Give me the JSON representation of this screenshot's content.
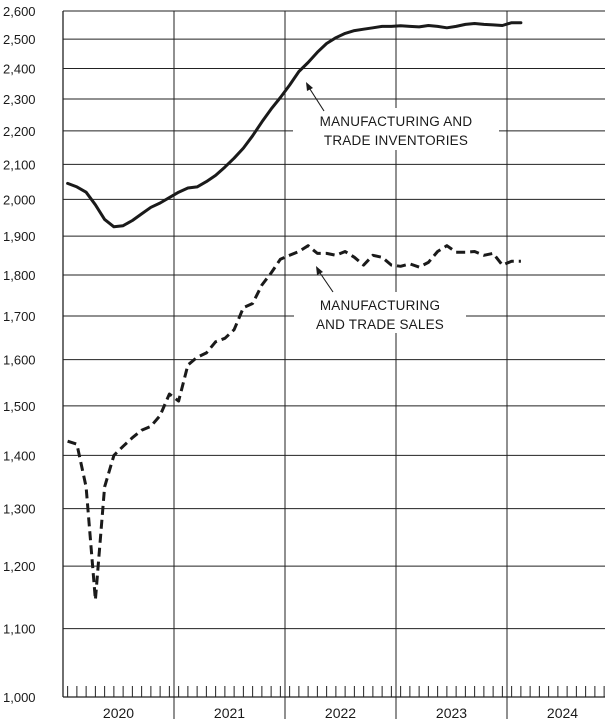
{
  "chart_data": {
    "type": "line",
    "y_scale": "log",
    "ylim": [
      1000,
      2600
    ],
    "y_ticks": [
      1000,
      1100,
      1200,
      1300,
      1400,
      1500,
      1600,
      1700,
      1800,
      1900,
      2000,
      2100,
      2200,
      2300,
      2400,
      2500,
      2600
    ],
    "y_tick_labels": [
      "1,000",
      "1,100",
      "1,200",
      "1,300",
      "1,400",
      "1,500",
      "1,600",
      "1,700",
      "1,800",
      "1,900",
      "2,000",
      "2,100",
      "2,200",
      "2,300",
      "2,400",
      "2,500",
      "2,600"
    ],
    "x_range": [
      "2020-01",
      "2024-12"
    ],
    "x_year_labels": [
      "2020",
      "2021",
      "2022",
      "2023",
      "2024"
    ],
    "grid": true,
    "series": [
      {
        "name": "MANUFACTURING AND TRADE INVENTORIES",
        "style": "solid",
        "x": [
          "2020-01",
          "2020-02",
          "2020-03",
          "2020-04",
          "2020-05",
          "2020-06",
          "2020-07",
          "2020-08",
          "2020-09",
          "2020-10",
          "2020-11",
          "2020-12",
          "2021-01",
          "2021-02",
          "2021-03",
          "2021-04",
          "2021-05",
          "2021-06",
          "2021-07",
          "2021-08",
          "2021-09",
          "2021-10",
          "2021-11",
          "2021-12",
          "2022-01",
          "2022-02",
          "2022-03",
          "2022-04",
          "2022-05",
          "2022-06",
          "2022-07",
          "2022-08",
          "2022-09",
          "2022-10",
          "2022-11",
          "2022-12",
          "2023-01",
          "2023-02",
          "2023-03",
          "2023-04",
          "2023-05",
          "2023-06",
          "2023-07",
          "2023-08",
          "2023-09",
          "2023-10",
          "2023-11",
          "2023-12",
          "2024-01",
          "2024-02"
        ],
        "values": [
          2045,
          2035,
          2020,
          1985,
          1945,
          1925,
          1928,
          1942,
          1960,
          1978,
          1990,
          2005,
          2020,
          2032,
          2035,
          2050,
          2068,
          2092,
          2118,
          2148,
          2185,
          2228,
          2268,
          2305,
          2345,
          2390,
          2420,
          2455,
          2485,
          2505,
          2520,
          2530,
          2535,
          2540,
          2545,
          2545,
          2547,
          2545,
          2543,
          2548,
          2545,
          2540,
          2545,
          2552,
          2555,
          2552,
          2550,
          2548,
          2558,
          2558
        ]
      },
      {
        "name": "MANUFACTURING AND TRADE SALES",
        "style": "dashed",
        "x": [
          "2020-01",
          "2020-02",
          "2020-03",
          "2020-04",
          "2020-05",
          "2020-06",
          "2020-07",
          "2020-08",
          "2020-09",
          "2020-10",
          "2020-11",
          "2020-12",
          "2021-01",
          "2021-02",
          "2021-03",
          "2021-04",
          "2021-05",
          "2021-06",
          "2021-07",
          "2021-08",
          "2021-09",
          "2021-10",
          "2021-11",
          "2021-12",
          "2022-01",
          "2022-02",
          "2022-03",
          "2022-04",
          "2022-05",
          "2022-06",
          "2022-07",
          "2022-08",
          "2022-09",
          "2022-10",
          "2022-11",
          "2022-12",
          "2023-01",
          "2023-02",
          "2023-03",
          "2023-04",
          "2023-05",
          "2023-06",
          "2023-07",
          "2023-08",
          "2023-09",
          "2023-10",
          "2023-11",
          "2023-12",
          "2024-01",
          "2024-02"
        ],
        "values": [
          1428,
          1422,
          1340,
          1145,
          1340,
          1400,
          1418,
          1435,
          1450,
          1458,
          1480,
          1525,
          1510,
          1588,
          1605,
          1615,
          1640,
          1648,
          1668,
          1720,
          1730,
          1775,
          1805,
          1840,
          1850,
          1860,
          1875,
          1855,
          1855,
          1850,
          1860,
          1845,
          1825,
          1850,
          1845,
          1825,
          1822,
          1828,
          1820,
          1832,
          1860,
          1875,
          1858,
          1858,
          1860,
          1850,
          1855,
          1825,
          1835,
          1835
        ]
      }
    ]
  },
  "annotations": {
    "inventories_line1": "MANUFACTURING AND",
    "inventories_line2": "TRADE INVENTORIES",
    "sales_line1": "MANUFACTURING",
    "sales_line2": "AND TRADE SALES"
  }
}
